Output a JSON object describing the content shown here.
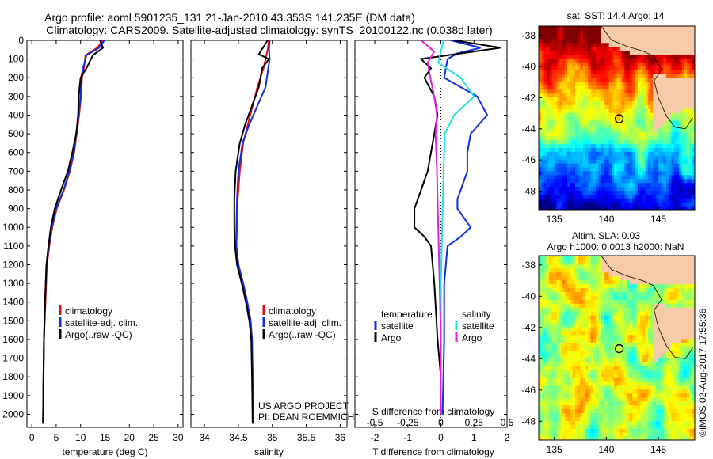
{
  "title": {
    "line1": "Argo profile: aoml 5901235_131 21-Jan-2010 43.353S 141.235E (DM data)",
    "line2": "Climatology: CARS2009. Satellite-adjusted climatology: synTS_20100122.nc (0.038d later)"
  },
  "footer": {
    "project": "US ARGO PROJECT",
    "pi": "PI: DEAN ROEMMICH",
    "credit": "©IMOS 02-Aug-2017 17:55:36"
  },
  "colors": {
    "climatology": "#e01010",
    "satellite": "#1030e0",
    "argo": "#000000",
    "sal_satellite": "#20e0e0",
    "sal_argo": "#e020e0"
  },
  "chart_data": [
    {
      "id": "temperature",
      "type": "line",
      "xlabel": "temperature (deg C)",
      "xlim": [
        -1,
        31
      ],
      "ylim": [
        2070,
        0
      ],
      "xticks": [
        0,
        5,
        10,
        15,
        20,
        25,
        30
      ],
      "yticks": [
        0,
        100,
        200,
        300,
        400,
        500,
        600,
        700,
        800,
        900,
        1000,
        1100,
        1200,
        1300,
        1400,
        1500,
        1600,
        1700,
        1800,
        1900,
        2000
      ],
      "legend": [
        "climatology",
        "satellite-adj. clim.",
        "Argo(..raw -QC)"
      ],
      "series": [
        {
          "name": "climatology",
          "color_key": "climatology",
          "x": [
            14.6,
            13.4,
            11.0,
            10.7,
            10.3,
            10.1,
            9.7,
            9.2,
            8.7,
            7.8,
            6.6,
            5.1,
            4.2,
            3.6,
            3.1,
            2.8,
            2.5,
            2.4,
            2.3
          ],
          "y": [
            0,
            40,
            80,
            150,
            200,
            300,
            400,
            500,
            600,
            700,
            800,
            900,
            1000,
            1100,
            1200,
            1400,
            1600,
            1800,
            2050
          ]
        },
        {
          "name": "satellite-adj. clim.",
          "color_key": "satellite",
          "x": [
            14.9,
            13.8,
            11.2,
            10.5,
            10.1,
            10.0,
            9.6,
            9.1,
            8.6,
            7.7,
            6.5,
            5.0,
            4.1,
            3.5,
            3.0,
            2.7,
            2.5,
            2.4,
            2.3
          ],
          "y": [
            0,
            40,
            80,
            150,
            200,
            300,
            400,
            500,
            600,
            700,
            800,
            900,
            1000,
            1100,
            1200,
            1400,
            1600,
            1800,
            2050
          ]
        },
        {
          "name": "Argo(..raw -QC)",
          "color_key": "argo",
          "x": [
            14.0,
            14.6,
            12.5,
            11.2,
            10.0,
            9.6,
            9.5,
            9.1,
            8.3,
            7.4,
            6.0,
            4.7,
            3.9,
            3.4,
            3.0,
            2.7,
            2.5,
            2.4,
            2.3
          ],
          "y": [
            0,
            40,
            80,
            150,
            200,
            300,
            400,
            500,
            600,
            700,
            800,
            900,
            1000,
            1100,
            1200,
            1400,
            1600,
            1800,
            2050
          ]
        }
      ]
    },
    {
      "id": "salinity",
      "type": "line",
      "xlabel": "salinity",
      "xlim": [
        33.8,
        36.1
      ],
      "ylim": [
        2070,
        0
      ],
      "xticks": [
        34,
        34.5,
        35,
        35.5,
        36
      ],
      "legend": [
        "climatology",
        "satellite-adj. clim.",
        "Argo(..raw -QC)"
      ],
      "series": [
        {
          "name": "climatology",
          "color_key": "climatology",
          "x": [
            34.95,
            34.93,
            34.9,
            34.87,
            34.78,
            34.71,
            34.64,
            34.57,
            34.52,
            34.49,
            34.48,
            34.47,
            34.5,
            34.57,
            34.63,
            34.68,
            34.7,
            34.71,
            34.72
          ],
          "y": [
            0,
            50,
            100,
            150,
            250,
            350,
            450,
            550,
            700,
            850,
            1000,
            1100,
            1200,
            1300,
            1400,
            1500,
            1600,
            1800,
            2050
          ]
        },
        {
          "name": "satellite-adj. clim.",
          "color_key": "satellite",
          "x": [
            34.96,
            34.95,
            34.96,
            34.94,
            34.9,
            34.78,
            34.66,
            34.56,
            34.5,
            34.48,
            34.47,
            34.47,
            34.5,
            34.57,
            34.63,
            34.68,
            34.7,
            34.71,
            34.72
          ],
          "y": [
            0,
            50,
            100,
            150,
            250,
            350,
            450,
            550,
            700,
            850,
            1000,
            1100,
            1200,
            1300,
            1400,
            1500,
            1600,
            1800,
            2050
          ]
        },
        {
          "name": "Argo(..raw -QC)",
          "color_key": "argo",
          "x": [
            34.93,
            34.8,
            34.95,
            34.85,
            34.8,
            34.7,
            34.6,
            34.52,
            34.46,
            34.44,
            34.44,
            34.45,
            34.48,
            34.55,
            34.61,
            34.66,
            34.69,
            34.7,
            34.71
          ],
          "y": [
            0,
            75,
            100,
            150,
            250,
            350,
            450,
            550,
            700,
            850,
            1000,
            1100,
            1200,
            1300,
            1400,
            1500,
            1600,
            1800,
            2050
          ]
        }
      ]
    },
    {
      "id": "differences",
      "type": "line",
      "xlabel": "T difference from climatology",
      "xlabel_top": "S difference from climatology",
      "xlim": [
        -2.6,
        2.0
      ],
      "ylim": [
        2070,
        0
      ],
      "xticks_T": [
        -2,
        -1,
        0,
        1,
        2
      ],
      "xticks_S": [
        -0.5,
        -0.25,
        0,
        0.25,
        0.5
      ],
      "legend_groups": [
        {
          "title": "temperature",
          "items": [
            "satellite",
            "Argo"
          ]
        },
        {
          "title": "salinity",
          "items": [
            "satellite",
            "Argo"
          ]
        }
      ],
      "series": [
        {
          "name": "satellite",
          "group": "temperature",
          "color_key": "satellite",
          "x": [
            0.3,
            1.2,
            0.5,
            0.2,
            0.1,
            1.1,
            1.4,
            0.9,
            0.8,
            0.8,
            0.6,
            0.5,
            0.5,
            0.7,
            0.9,
            0.6,
            0.2,
            0.1,
            0.1,
            0.05
          ],
          "y": [
            0,
            40,
            70,
            100,
            200,
            300,
            400,
            500,
            600,
            700,
            800,
            850,
            900,
            950,
            1000,
            1050,
            1100,
            1300,
            1600,
            2000
          ]
        },
        {
          "name": "Argo",
          "group": "temperature",
          "color_key": "argo",
          "x": [
            0.4,
            1.8,
            0.6,
            -0.6,
            -0.3,
            -0.5,
            -0.2,
            -0.1,
            -0.2,
            -0.3,
            -0.4,
            -0.6,
            -0.8,
            -0.8,
            -0.5,
            -0.3,
            -0.2,
            -0.1,
            0.0,
            0.0
          ],
          "y": [
            0,
            40,
            70,
            100,
            150,
            200,
            300,
            400,
            500,
            600,
            700,
            800,
            900,
            1000,
            1050,
            1100,
            1300,
            1600,
            1800,
            2000
          ]
        },
        {
          "name": "satellite",
          "group": "salinity",
          "color_key": "sal_satellite",
          "x": [
            0.02,
            0.0,
            -0.02,
            0.15,
            0.25,
            0.1,
            0.03,
            0.02,
            0.01,
            0.0,
            0.0,
            0.0
          ],
          "y": [
            0,
            60,
            120,
            200,
            300,
            400,
            500,
            700,
            1000,
            1300,
            1600,
            2000
          ]
        },
        {
          "name": "Argo",
          "group": "salinity",
          "color_key": "sal_argo",
          "x": [
            -0.15,
            -0.05,
            -0.1,
            -0.08,
            -0.05,
            -0.03,
            -0.04,
            -0.03,
            -0.02,
            -0.01,
            0.0,
            0.0
          ],
          "y": [
            0,
            60,
            120,
            200,
            300,
            400,
            500,
            700,
            1000,
            1300,
            1600,
            2000
          ]
        }
      ]
    },
    {
      "id": "sst_map",
      "type": "heatmap",
      "title": "sat. SST: 14.4  Argo: 14",
      "xlim": [
        133.5,
        148.5
      ],
      "ylim": [
        -49.2,
        -37.4
      ],
      "xticks": [
        135,
        140,
        145
      ],
      "yticks": [
        -38,
        -40,
        -42,
        -44,
        -46,
        -48
      ],
      "argo_position": {
        "lon": 141.235,
        "lat": -43.353
      }
    },
    {
      "id": "sla_map",
      "type": "heatmap",
      "title": "Altim. SLA: 0.03",
      "subtitle": "Argo h1000: 0.0013  h2000: NaN",
      "xlim": [
        133.5,
        148.5
      ],
      "ylim": [
        -49.2,
        -37.4
      ],
      "xticks": [
        135,
        140,
        145
      ],
      "yticks": [
        -38,
        -40,
        -42,
        -44,
        -46,
        -48
      ],
      "argo_position": {
        "lon": 141.235,
        "lat": -43.353
      }
    }
  ]
}
